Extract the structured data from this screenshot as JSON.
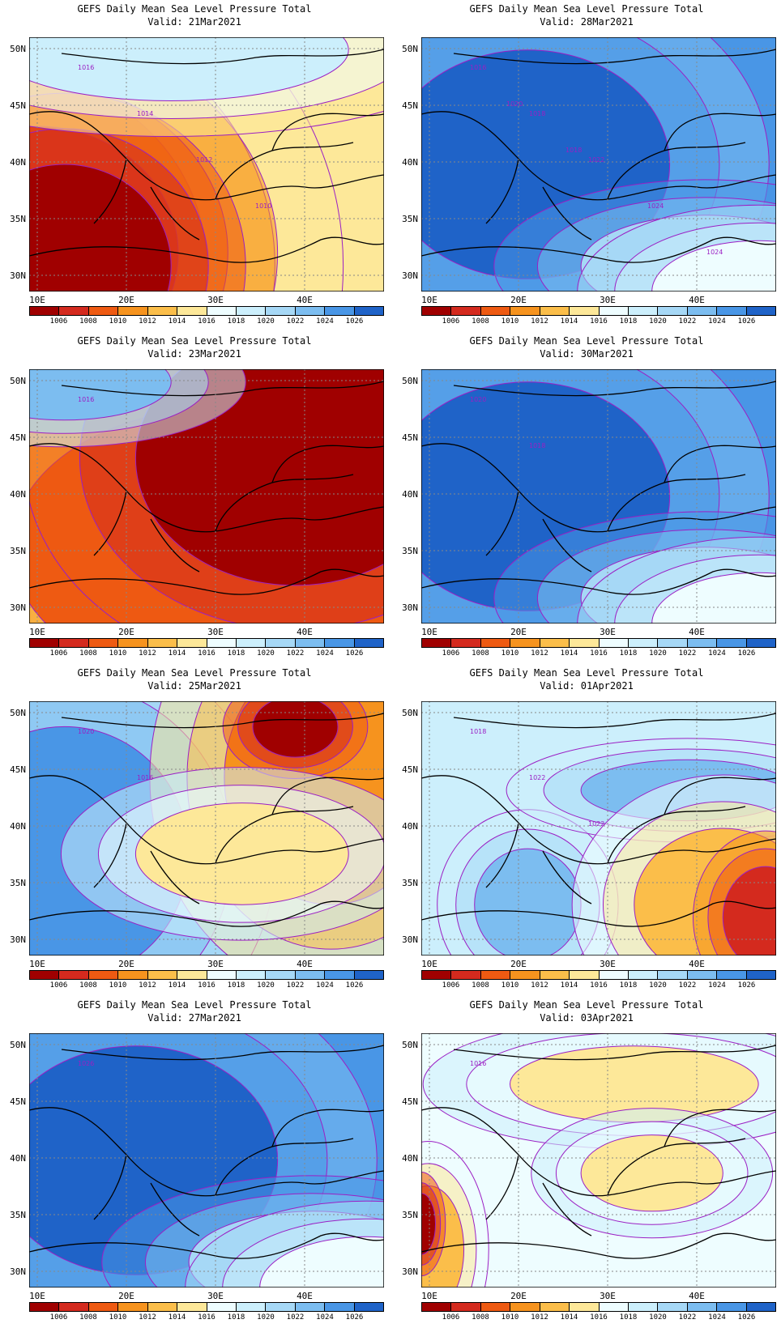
{
  "panels": [
    {
      "title": "GEFS Daily Mean Sea Level Pressure Total",
      "valid": "Valid: 21Mar2021",
      "contours": [
        "1016",
        "1014",
        "1012",
        "1010"
      ],
      "scheme": "low"
    },
    {
      "title": "GEFS Daily Mean Sea Level Pressure Total",
      "valid": "Valid: 28Mar2021",
      "contours": [
        "1016",
        "1018",
        "1022",
        "1024",
        "1024",
        "1020",
        "1018"
      ],
      "scheme": "high"
    },
    {
      "title": "GEFS Daily Mean Sea Level Pressure Total",
      "valid": "Valid: 23Mar2021",
      "contours": [
        "1016"
      ],
      "scheme": "lowEast"
    },
    {
      "title": "GEFS Daily Mean Sea Level Pressure Total",
      "valid": "Valid: 30Mar2021",
      "contours": [
        "1020",
        "1018"
      ],
      "scheme": "high"
    },
    {
      "title": "GEFS Daily Mean Sea Level Pressure Total",
      "valid": "Valid: 25Mar2021",
      "contours": [
        "1020",
        "1016"
      ],
      "scheme": "mixed"
    },
    {
      "title": "GEFS Daily Mean Sea Level Pressure Total",
      "valid": "Valid: 01Apr2021",
      "contours": [
        "1018",
        "1022",
        "1022"
      ],
      "scheme": "mixedSE"
    },
    {
      "title": "GEFS Daily Mean Sea Level Pressure Total",
      "valid": "Valid: 27Mar2021",
      "contours": [
        "1026"
      ],
      "scheme": "high"
    },
    {
      "title": "GEFS Daily Mean Sea Level Pressure Total",
      "valid": "Valid: 03Apr2021",
      "contours": [
        "1016"
      ],
      "scheme": "neutral"
    }
  ],
  "axes": {
    "lat_labels": [
      "50N",
      "45N",
      "40N",
      "35N",
      "30N"
    ],
    "lon_labels": [
      "10E",
      "20E",
      "30E",
      "40E"
    ]
  },
  "colorbar": {
    "levels": [
      "1006",
      "1008",
      "1010",
      "1012",
      "1014",
      "1016",
      "1018",
      "1020",
      "1022",
      "1024",
      "1026"
    ],
    "colors": [
      "#a00000",
      "#d42a1e",
      "#ee5a12",
      "#f6931e",
      "#fbbe4a",
      "#fde899",
      "#eefdff",
      "#cceffc",
      "#a6d8f6",
      "#7cbdf0",
      "#4996e6",
      "#1f63c8"
    ]
  }
}
